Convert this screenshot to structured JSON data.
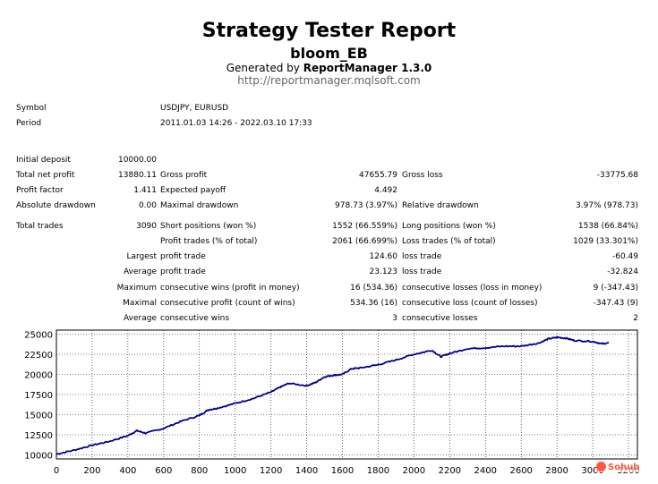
{
  "header": {
    "title": "Strategy Tester Report",
    "subtitle": "bloom_EB",
    "generated_prefix": "Generated by",
    "generated_tool": "ReportManager 1.3.0",
    "url": "http://reportmanager.mqlsoft.com"
  },
  "info": {
    "symbol_label": "Symbol",
    "symbol_value": "USDJPY, EURUSD",
    "period_label": "Period",
    "period_value": "2011.01.03 14:26 - 2022.03.10 17:33"
  },
  "stats": {
    "initial_deposit_label": "Initial deposit",
    "initial_deposit_value": "10000.00",
    "total_net_profit_label": "Total net profit",
    "total_net_profit_value": "13880.11",
    "gross_profit_label": "Gross profit",
    "gross_profit_value": "47655.79",
    "gross_loss_label": "Gross loss",
    "gross_loss_value": "-33775.68",
    "profit_factor_label": "Profit factor",
    "profit_factor_value": "1.411",
    "expected_payoff_label": "Expected payoff",
    "expected_payoff_value": "4.492",
    "absolute_drawdown_label": "Absolute drawdown",
    "absolute_drawdown_value": "0.00",
    "maximal_drawdown_label": "Maximal drawdown",
    "maximal_drawdown_value": "978.73 (3.97%)",
    "relative_drawdown_label": "Relative drawdown",
    "relative_drawdown_value": "3.97% (978.73)",
    "total_trades_label": "Total trades",
    "total_trades_value": "3090",
    "short_positions_label": "Short positions (won %)",
    "short_positions_value": "1552 (66.559%)",
    "long_positions_label": "Long positions (won %)",
    "long_positions_value": "1538 (66.84%)",
    "profit_trades_label": "Profit trades (% of total)",
    "profit_trades_value": "2061 (66.699%)",
    "loss_trades_label": "Loss trades (% of total)",
    "loss_trades_value": "1029 (33.301%)",
    "largest_label": "Largest",
    "largest_profit_label": "profit trade",
    "largest_profit_value": "124.60",
    "largest_loss_label": "loss trade",
    "largest_loss_value": "-60.49",
    "average_label": "Average",
    "average_profit_label": "profit trade",
    "average_profit_value": "23.123",
    "average_loss_label": "loss trade",
    "average_loss_value": "-32.824",
    "maximum_label": "Maximum",
    "max_cons_wins_label": "consecutive wins (profit in money)",
    "max_cons_wins_value": "16 (534.36)",
    "max_cons_losses_label": "consecutive losses (loss in money)",
    "max_cons_losses_value": "9 (-347.43)",
    "maximal_label": "Maximal",
    "maximal_cons_profit_label": "consecutive profit (count of wins)",
    "maximal_cons_profit_value": "534.36 (16)",
    "maximal_cons_loss_label": "consecutive loss (count of losses)",
    "maximal_cons_loss_value": "-347.43 (9)",
    "average2_label": "Average",
    "avg_cons_wins_label": "consecutive wins",
    "avg_cons_wins_value": "3",
    "avg_cons_losses_label": "consecutive losses",
    "avg_cons_losses_value": "2"
  },
  "watermark": "Sohub",
  "chart_data": {
    "type": "line",
    "title": "",
    "xlabel": "",
    "ylabel": "",
    "xlim": [
      0,
      3250
    ],
    "ylim": [
      9500,
      25500
    ],
    "grid": true,
    "x_ticks": [
      "0",
      "200",
      "400",
      "600",
      "800",
      "1000",
      "1200",
      "1400",
      "1600",
      "1800",
      "2000",
      "2200",
      "2400",
      "2600",
      "2800",
      "3000",
      "3200"
    ],
    "y_ticks": [
      "10000",
      "12500",
      "15000",
      "17500",
      "20000",
      "22500",
      "25000"
    ],
    "line_color": "#00008b",
    "series": [
      {
        "x": [
          0,
          100,
          200,
          300,
          400,
          450,
          500,
          600,
          700,
          800,
          850,
          900,
          1000,
          1100,
          1200,
          1250,
          1300,
          1400,
          1450,
          1500,
          1550,
          1600,
          1650,
          1700,
          1800,
          1900,
          2000,
          2100,
          2150,
          2200,
          2300,
          2400,
          2500,
          2600,
          2700,
          2750,
          2800,
          2850,
          2900,
          3000,
          3050,
          3090
        ],
        "y": [
          10100,
          10600,
          11200,
          11700,
          12400,
          13000,
          12700,
          13300,
          14200,
          14900,
          15600,
          15800,
          16400,
          17000,
          17800,
          18400,
          18900,
          18600,
          19000,
          19700,
          19900,
          20000,
          20700,
          20800,
          21200,
          21800,
          22500,
          23000,
          22200,
          22600,
          23200,
          23300,
          23500,
          23500,
          23900,
          24400,
          24600,
          24500,
          24200,
          24100,
          23800,
          23900
        ]
      }
    ]
  }
}
